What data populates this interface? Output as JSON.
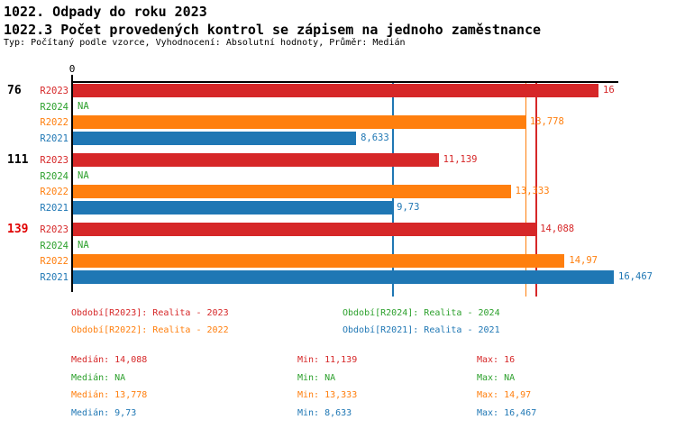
{
  "header": {
    "title": "1022. Odpady do roku 2023",
    "subtitle": "1022.3 Počet provedených kontrol se zápisem na jednoho zaměstnance",
    "meta": "Typ: Počítaný podle vzorce, Vyhodnocení: Absolutní hodnoty, Průměr: Medián"
  },
  "colors": {
    "R2023": "#d62728",
    "R2024": "#2ca02c",
    "R2022": "#ff7f0e",
    "R2021": "#1f77b4",
    "axis": "#000000",
    "group_label_default": "#000000",
    "group_label_highlight": "#e00000"
  },
  "chart_data": {
    "type": "bar",
    "orientation": "horizontal",
    "title": "1022.3 Počet provedených kontrol se zápisem na jednoho zaměstnance",
    "xlabel": "",
    "ylabel": "",
    "xlim": [
      0,
      16.6
    ],
    "axis_origin_label": "0",
    "grid": false,
    "series_order": [
      "R2023",
      "R2024",
      "R2022",
      "R2021"
    ],
    "groups": [
      {
        "label": "76",
        "highlight": false,
        "bars": [
          {
            "series": "R2023",
            "value": 16,
            "label": "16"
          },
          {
            "series": "R2024",
            "value": null,
            "label": "NA"
          },
          {
            "series": "R2022",
            "value": 13.778,
            "label": "13,778"
          },
          {
            "series": "R2021",
            "value": 8.633,
            "label": "8,633"
          }
        ]
      },
      {
        "label": "111",
        "highlight": false,
        "bars": [
          {
            "series": "R2023",
            "value": 11.139,
            "label": "11,139"
          },
          {
            "series": "R2024",
            "value": null,
            "label": "NA"
          },
          {
            "series": "R2022",
            "value": 13.333,
            "label": "13,333"
          },
          {
            "series": "R2021",
            "value": 9.73,
            "label": "9,73"
          }
        ]
      },
      {
        "label": "139",
        "highlight": true,
        "bars": [
          {
            "series": "R2023",
            "value": 14.088,
            "label": "14,088"
          },
          {
            "series": "R2024",
            "value": null,
            "label": "NA"
          },
          {
            "series": "R2022",
            "value": 14.97,
            "label": "14,97"
          },
          {
            "series": "R2021",
            "value": 16.467,
            "label": "16,467"
          }
        ]
      }
    ],
    "median_lines": [
      {
        "series": "R2023",
        "value": 14.088
      },
      {
        "series": "R2022",
        "value": 13.778
      },
      {
        "series": "R2021",
        "value": 9.73
      }
    ]
  },
  "legend": {
    "items": [
      {
        "series": "R2023",
        "text": "Období[R2023]: Realita - 2023",
        "col": 0,
        "row": 0
      },
      {
        "series": "R2024",
        "text": "Období[R2024]: Realita - 2024",
        "col": 1,
        "row": 0
      },
      {
        "series": "R2022",
        "text": "Období[R2022]: Realita - 2022",
        "col": 0,
        "row": 1
      },
      {
        "series": "R2021",
        "text": "Období[R2021]: Realita - 2021",
        "col": 1,
        "row": 1
      }
    ]
  },
  "stats": {
    "rows": [
      {
        "series": "R2023",
        "median": "Medián: 14,088",
        "min": "Min: 11,139",
        "max": "Max: 16"
      },
      {
        "series": "R2024",
        "median": "Medián: NA",
        "min": "Min: NA",
        "max": "Max: NA"
      },
      {
        "series": "R2022",
        "median": "Medián: 13,778",
        "min": "Min: 13,333",
        "max": "Max: 14,97"
      },
      {
        "series": "R2021",
        "median": "Medián: 9,73",
        "min": "Min: 8,633",
        "max": "Max: 16,467"
      }
    ]
  }
}
